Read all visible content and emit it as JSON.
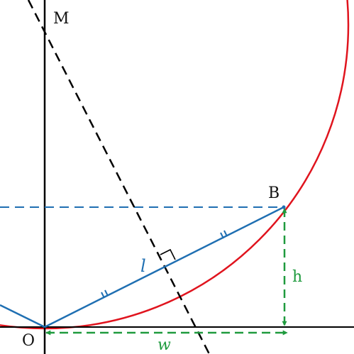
{
  "labels": {
    "center": "M",
    "origin": "O",
    "point_b": "B",
    "chord": "l",
    "height": "h",
    "width": "w"
  },
  "colors": {
    "axes": "#000000",
    "arc": "#e0141e",
    "chord": "#1f6fb2",
    "bisector": "#000000",
    "measure": "#1f9a3e",
    "horizontal_guide": "#1f6fb2"
  }
}
